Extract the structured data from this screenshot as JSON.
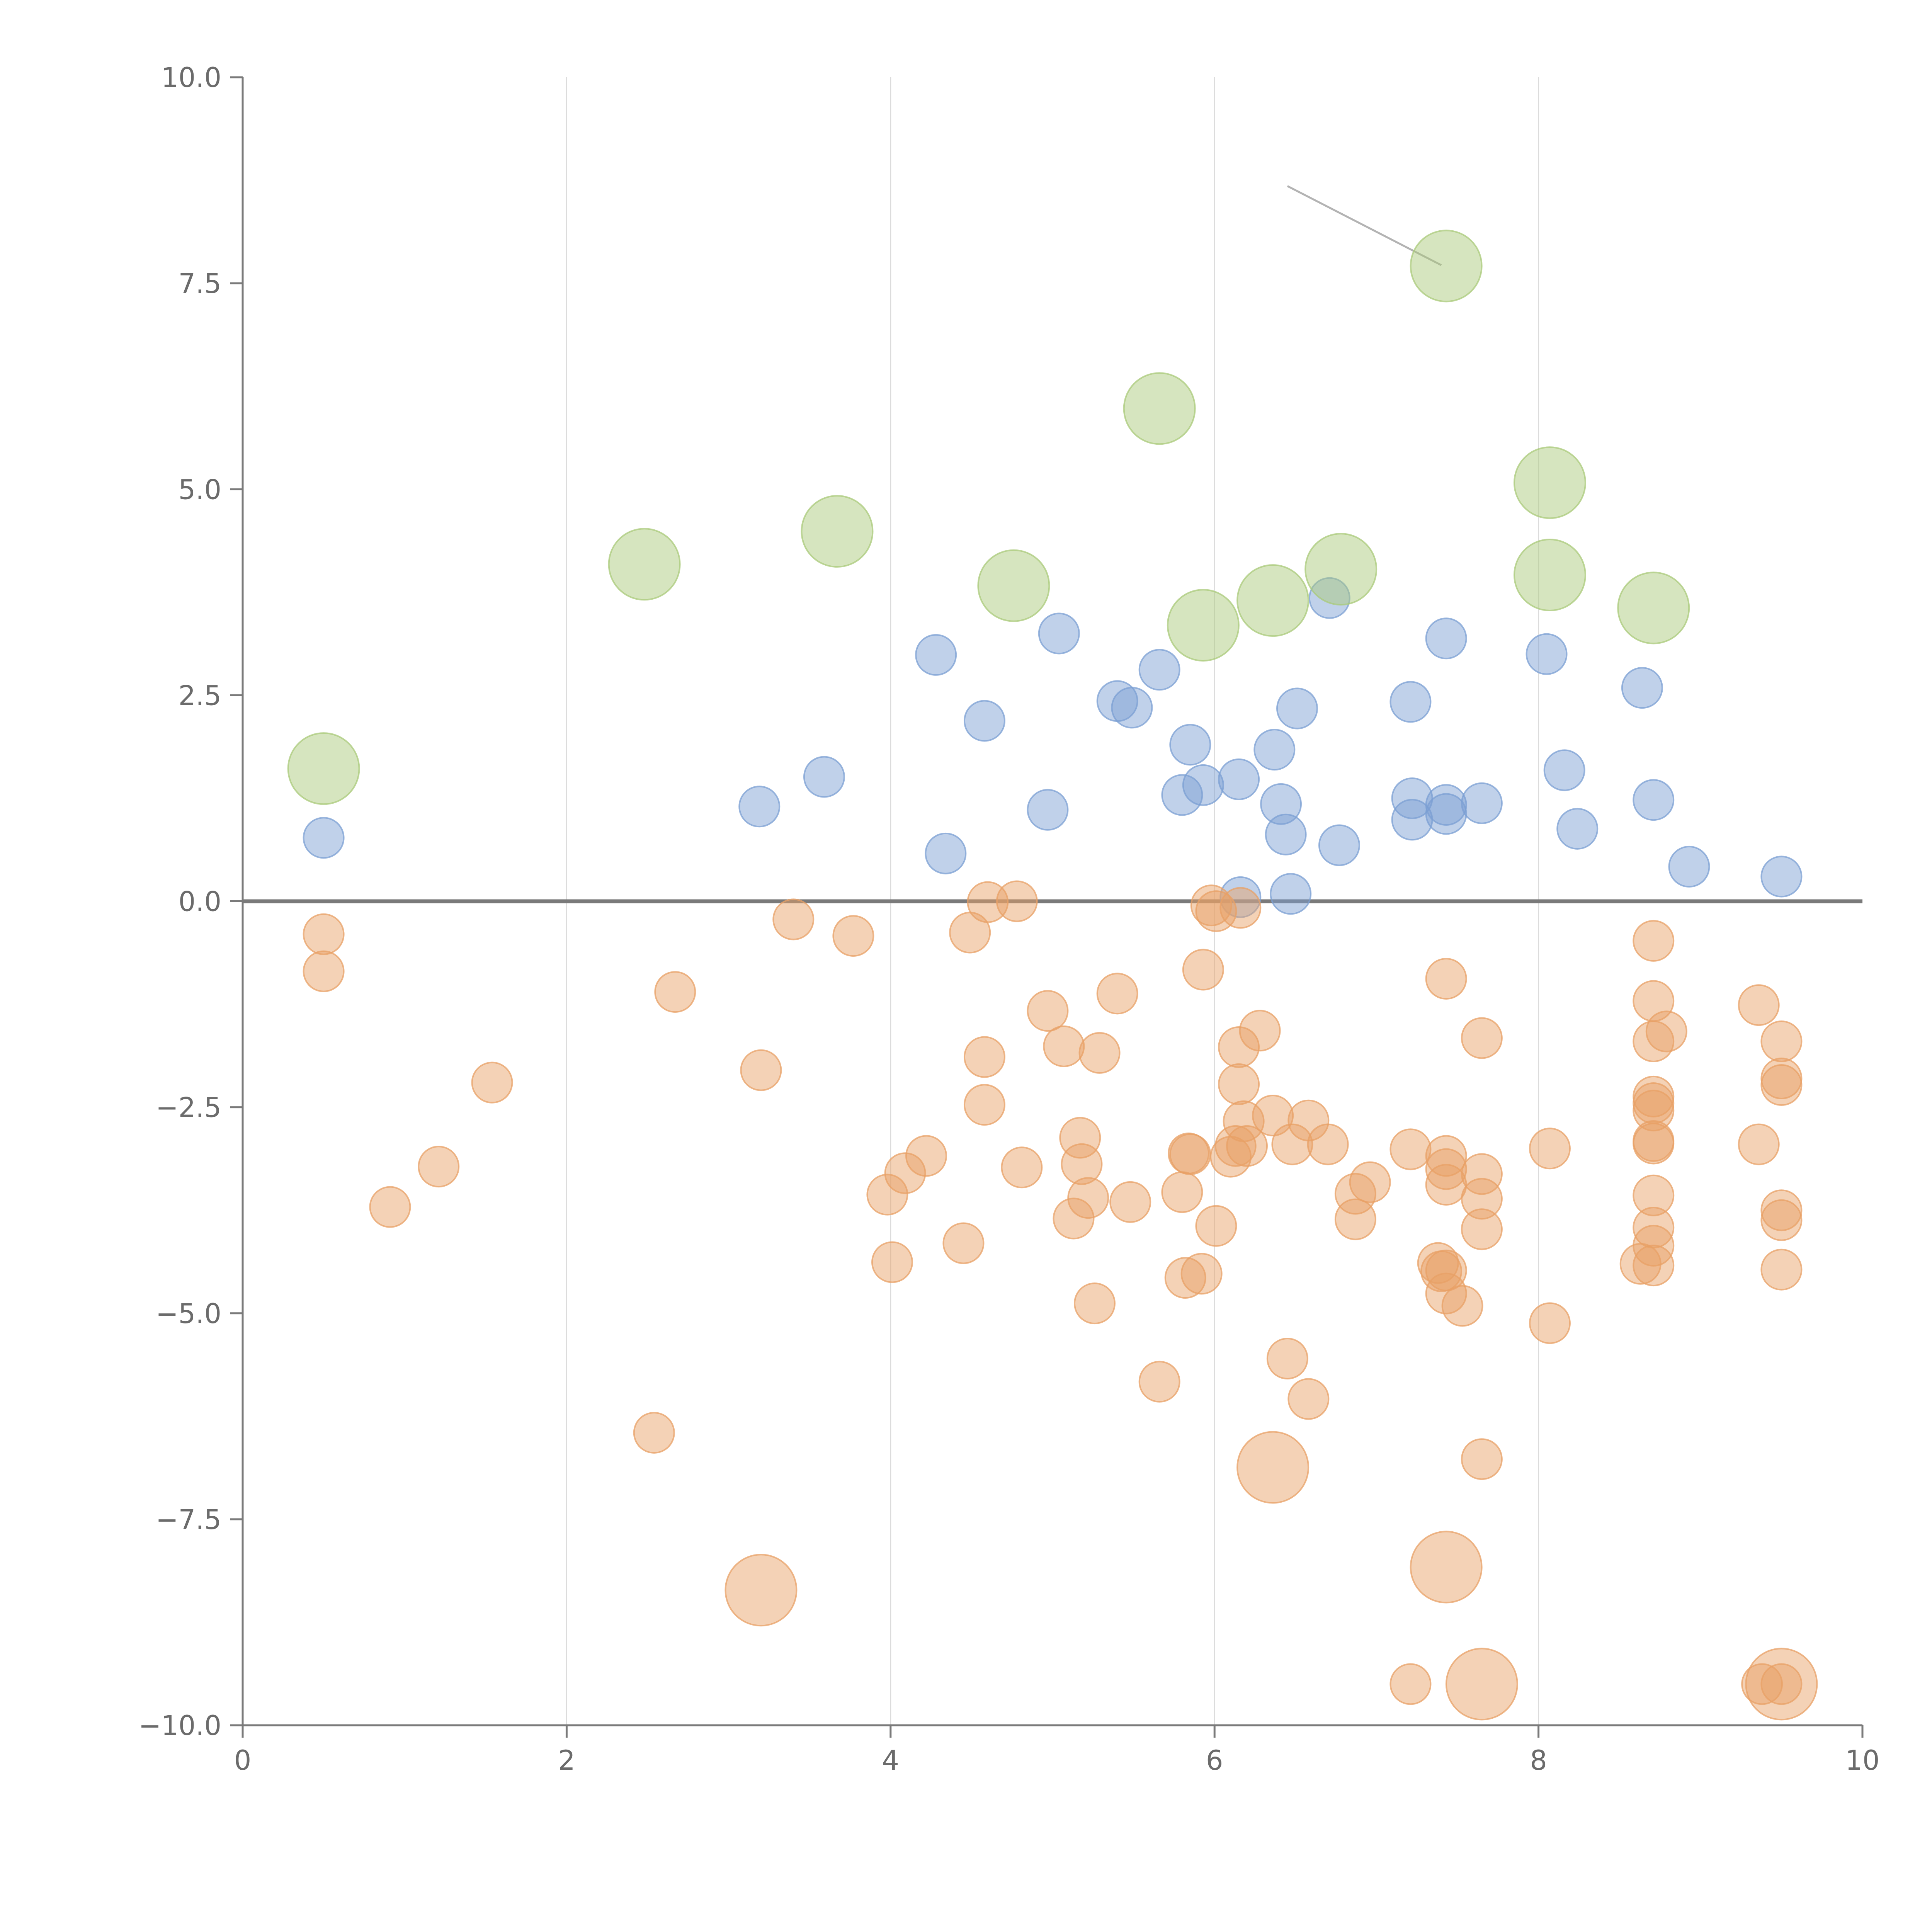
{
  "chart_data": {
    "type": "scatter",
    "title": "",
    "xlabel": "",
    "ylabel": "",
    "xlim": [
      0,
      10
    ],
    "ylim": [
      -10,
      10
    ],
    "x_ticks": [
      0,
      2,
      4,
      6,
      8,
      10
    ],
    "y_ticks": [
      -10,
      -7.5,
      -5,
      -2.5,
      0,
      2.5,
      5,
      7.5,
      10
    ],
    "x_tick_labels": [
      "0",
      "2",
      "4",
      "6",
      "8",
      "10"
    ],
    "y_tick_labels": [
      "−10.0",
      "−7.5",
      "−5.0",
      "−2.5",
      "0.0",
      "2.5",
      "5.0",
      "7.5",
      "10.0"
    ],
    "grid": "vertical",
    "zero_line": true,
    "legend": "none",
    "series": [
      {
        "color": "#7b9fd3",
        "size": "small",
        "points": [
          [
            0.5,
            0.77
          ],
          [
            3.19,
            1.15
          ],
          [
            3.59,
            1.51
          ],
          [
            4.28,
            2.99
          ],
          [
            4.34,
            0.58
          ],
          [
            4.58,
            2.19
          ],
          [
            4.97,
            1.11
          ],
          [
            5.04,
            3.25
          ],
          [
            5.4,
            2.43
          ],
          [
            5.49,
            2.35
          ],
          [
            5.66,
            2.81
          ],
          [
            5.8,
            1.29
          ],
          [
            5.85,
            1.9
          ],
          [
            5.93,
            1.41
          ],
          [
            6.15,
            1.48
          ],
          [
            6.16,
            0.05
          ],
          [
            6.37,
            1.84
          ],
          [
            6.41,
            1.18
          ],
          [
            6.44,
            0.81
          ],
          [
            6.47,
            0.09
          ],
          [
            6.51,
            2.34
          ],
          [
            6.71,
            3.68
          ],
          [
            6.77,
            0.68
          ],
          [
            7.21,
            2.42
          ],
          [
            7.22,
            1.25
          ],
          [
            7.22,
            0.99
          ],
          [
            7.43,
            3.19
          ],
          [
            7.43,
            1.17
          ],
          [
            7.43,
            1.06
          ],
          [
            7.65,
            1.19
          ],
          [
            8.05,
            3.0
          ],
          [
            8.16,
            1.59
          ],
          [
            8.24,
            0.88
          ],
          [
            8.64,
            2.59
          ],
          [
            8.71,
            1.23
          ],
          [
            8.93,
            0.42
          ],
          [
            9.5,
            0.3
          ]
        ]
      },
      {
        "color": "#a9c97a",
        "size": "large",
        "points": [
          [
            0.5,
            1.61
          ],
          [
            2.48,
            4.09
          ],
          [
            3.67,
            4.49
          ],
          [
            4.76,
            3.83
          ],
          [
            5.66,
            5.98
          ],
          [
            5.93,
            3.35
          ],
          [
            6.36,
            3.65
          ],
          [
            6.78,
            4.03
          ],
          [
            7.43,
            7.71
          ],
          [
            8.07,
            5.08
          ],
          [
            8.07,
            3.96
          ],
          [
            8.71,
            3.56
          ]
        ]
      },
      {
        "color": "#e8a066",
        "size": "small",
        "points": [
          [
            0.5,
            -0.4
          ],
          [
            0.5,
            -0.85
          ],
          [
            0.91,
            -3.71
          ],
          [
            1.21,
            -3.22
          ],
          [
            1.54,
            -2.2
          ],
          [
            2.54,
            -6.45
          ],
          [
            2.67,
            -1.1
          ],
          [
            3.2,
            -2.05
          ],
          [
            3.4,
            -0.22
          ],
          [
            3.77,
            -0.42
          ],
          [
            3.98,
            -3.56
          ],
          [
            4.01,
            -4.38
          ],
          [
            4.09,
            -3.3
          ],
          [
            4.22,
            -3.09
          ],
          [
            4.45,
            -4.15
          ],
          [
            4.49,
            -0.38
          ],
          [
            4.58,
            -1.89
          ],
          [
            4.58,
            -2.47
          ],
          [
            4.6,
            -0.01
          ],
          [
            4.78,
            0.0
          ],
          [
            4.81,
            -3.23
          ],
          [
            4.97,
            -1.33
          ],
          [
            5.07,
            -1.76
          ],
          [
            5.13,
            -3.85
          ],
          [
            5.17,
            -2.87
          ],
          [
            5.18,
            -3.19
          ],
          [
            5.22,
            -3.6
          ],
          [
            5.26,
            -4.88
          ],
          [
            5.29,
            -1.84
          ],
          [
            5.4,
            -1.12
          ],
          [
            5.48,
            -3.65
          ],
          [
            5.66,
            -5.83
          ],
          [
            5.8,
            -3.53
          ],
          [
            5.82,
            -4.57
          ],
          [
            5.84,
            -3.06
          ],
          [
            5.85,
            -3.07
          ],
          [
            5.92,
            -4.52
          ],
          [
            5.93,
            -0.83
          ],
          [
            5.98,
            -0.05
          ],
          [
            6.01,
            -0.12
          ],
          [
            6.01,
            -3.94
          ],
          [
            6.1,
            -3.1
          ],
          [
            6.13,
            -2.97
          ],
          [
            6.15,
            -1.77
          ],
          [
            6.15,
            -2.22
          ],
          [
            6.16,
            -0.08
          ],
          [
            6.18,
            -2.67
          ],
          [
            6.2,
            -2.97
          ],
          [
            6.28,
            -1.57
          ],
          [
            6.36,
            -2.6
          ],
          [
            6.45,
            -5.55
          ],
          [
            6.48,
            -2.95
          ],
          [
            6.58,
            -6.04
          ],
          [
            6.58,
            -2.66
          ],
          [
            6.7,
            -2.95
          ],
          [
            6.87,
            -3.55
          ],
          [
            6.87,
            -3.86
          ],
          [
            6.96,
            -3.41
          ],
          [
            7.21,
            -9.5
          ],
          [
            7.21,
            -3.01
          ],
          [
            7.38,
            -4.39
          ],
          [
            7.4,
            -4.49
          ],
          [
            7.43,
            -4.76
          ],
          [
            7.43,
            -3.44
          ],
          [
            7.43,
            -3.09
          ],
          [
            7.43,
            -3.25
          ],
          [
            7.43,
            -0.94
          ],
          [
            7.43,
            -4.48
          ],
          [
            7.53,
            -4.91
          ],
          [
            7.65,
            -3.61
          ],
          [
            7.65,
            -3.98
          ],
          [
            7.65,
            -3.31
          ],
          [
            7.65,
            -1.66
          ],
          [
            7.65,
            -6.77
          ],
          [
            8.07,
            -3.0
          ],
          [
            8.07,
            -5.12
          ],
          [
            8.63,
            -4.4
          ],
          [
            8.71,
            -0.48
          ],
          [
            8.71,
            -1.21
          ],
          [
            8.71,
            -1.7
          ],
          [
            8.71,
            -2.37
          ],
          [
            8.71,
            -2.54
          ],
          [
            8.71,
            -2.45
          ],
          [
            8.71,
            -2.91
          ],
          [
            8.71,
            -2.94
          ],
          [
            8.71,
            -3.57
          ],
          [
            8.71,
            -3.96
          ],
          [
            8.71,
            -4.18
          ],
          [
            8.71,
            -4.42
          ],
          [
            8.79,
            -1.58
          ],
          [
            9.36,
            -1.26
          ],
          [
            9.36,
            -2.95
          ],
          [
            9.38,
            -9.5
          ],
          [
            9.5,
            -1.7
          ],
          [
            9.5,
            -2.15
          ],
          [
            9.5,
            -2.23
          ],
          [
            9.5,
            -3.75
          ],
          [
            9.5,
            -3.87
          ],
          [
            9.5,
            -4.47
          ],
          [
            9.5,
            -9.5
          ]
        ]
      },
      {
        "color": "#e8a066",
        "size": "large",
        "points": [
          [
            3.2,
            -8.36
          ],
          [
            6.36,
            -6.87
          ],
          [
            7.43,
            -8.08
          ],
          [
            7.65,
            -9.5
          ],
          [
            9.5,
            -9.5
          ]
        ]
      }
    ]
  }
}
